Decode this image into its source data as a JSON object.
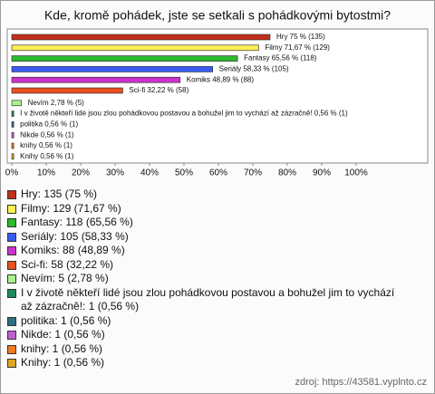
{
  "chart_data": {
    "type": "bar",
    "orientation": "horizontal",
    "title": "Kde, kromě pohádek, jste se setkali s pohádkovými bytostmi?",
    "categories": [
      "Hry",
      "Filmy",
      "Fantasy",
      "Seriály",
      "Komiks",
      "Sci-fi",
      "Nevím",
      "I v životě někteří lidé jsou zlou pohádkovou postavou a bohužel jim to vychází až zázračně!",
      "politika",
      "Nikde",
      "knihy",
      "Knihy"
    ],
    "values": [
      75,
      71.67,
      65.56,
      58.33,
      48.89,
      32.22,
      2.78,
      0.56,
      0.56,
      0.56,
      0.56,
      0.56
    ],
    "value_labels": [
      "Hry 75 % (135)",
      "Filmy 71,67 % (129)",
      "Fantasy 65,56 % (118)",
      "Seriály 58,33 % (105)",
      "Komiks 48,89 % (88)",
      "Sci-fi 32,22 % (58)",
      "Nevím 2,78 % (5)",
      "I v životě někteří lidé jsou zlou pohádkovou postavou a bohužel jim to vychází až zázračně! 0,56 % (1)",
      "politika 0,56 % (1)",
      "Nikde 0,56 % (1)",
      "knihy 0,56 % (1)",
      "Knihy 0,56 % (1)"
    ],
    "colors": [
      "#c0301c",
      "#ffee55",
      "#2eb82e",
      "#3a5cf0",
      "#cc33cc",
      "#e8501e",
      "#a8f090",
      "#1e8c5a",
      "#2e6e80",
      "#c060d0",
      "#f07a20",
      "#e0a820"
    ],
    "legend_labels": [
      "Hry: 135 (75 %)",
      "Filmy: 129 (71,67 %)",
      "Fantasy: 118 (65,56 %)",
      "Seriály: 105 (58,33 %)",
      "Komiks: 88 (48,89 %)",
      "Sci-fi: 58 (32,22 %)",
      "Nevím: 5 (2,78 %)",
      "I v životě někteří lidé jsou zlou pohádkovou postavou a bohužel jim to vychází až zázračně!: 1 (0,56 %)",
      "politika: 1 (0,56 %)",
      "Nikde: 1 (0,56 %)",
      "knihy: 1 (0,56 %)",
      "Knihy: 1 (0,56 %)"
    ],
    "xlim": [
      0,
      100
    ],
    "xticks": [
      {
        "value": 0,
        "label": "0%"
      },
      {
        "value": 10,
        "label": "10%"
      },
      {
        "value": 20,
        "label": "20%"
      },
      {
        "value": 30,
        "label": "30%"
      },
      {
        "value": 40,
        "label": "40%"
      },
      {
        "value": 50,
        "label": "50%"
      },
      {
        "value": 60,
        "label": "60%"
      },
      {
        "value": 70,
        "label": "70%"
      },
      {
        "value": 80,
        "label": "80%"
      },
      {
        "value": 90,
        "label": "90%"
      },
      {
        "value": 100,
        "label": "100%"
      }
    ],
    "source": "zdroj: https://43581.vyplnto.cz"
  }
}
